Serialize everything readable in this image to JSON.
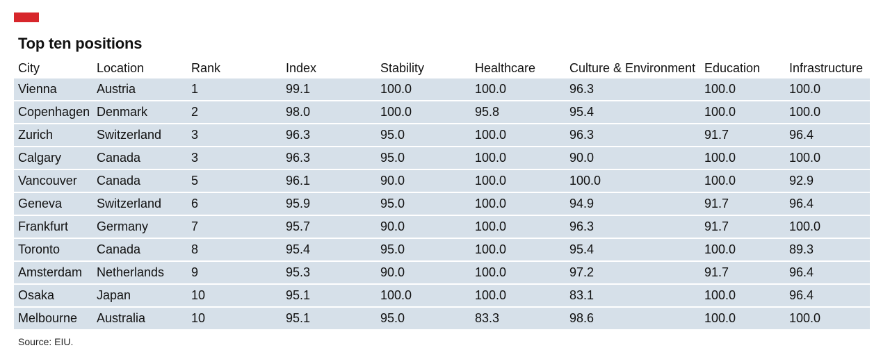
{
  "title": "Top ten positions",
  "source": "Source: EIU.",
  "colors": {
    "accent_tag": "#d7262b",
    "row_fill": "#d6e0e9"
  },
  "chart_data": {
    "type": "table",
    "title": "Top ten positions",
    "columns": [
      "City",
      "Location",
      "Rank",
      "Index",
      "Stability",
      "Healthcare",
      "Culture & Environment",
      "Education",
      "Infrastructure"
    ],
    "rows": [
      [
        "Vienna",
        "Austria",
        "1",
        "99.1",
        "100.0",
        "100.0",
        "96.3",
        "100.0",
        "100.0"
      ],
      [
        "Copenhagen",
        "Denmark",
        "2",
        "98.0",
        "100.0",
        "95.8",
        "95.4",
        "100.0",
        "100.0"
      ],
      [
        "Zurich",
        "Switzerland",
        "3",
        "96.3",
        "95.0",
        "100.0",
        "96.3",
        "91.7",
        "96.4"
      ],
      [
        "Calgary",
        "Canada",
        "3",
        "96.3",
        "95.0",
        "100.0",
        "90.0",
        "100.0",
        "100.0"
      ],
      [
        "Vancouver",
        "Canada",
        "5",
        "96.1",
        "90.0",
        "100.0",
        "100.0",
        "100.0",
        "92.9"
      ],
      [
        "Geneva",
        "Switzerland",
        "6",
        "95.9",
        "95.0",
        "100.0",
        "94.9",
        "91.7",
        "96.4"
      ],
      [
        "Frankfurt",
        "Germany",
        "7",
        "95.7",
        "90.0",
        "100.0",
        "96.3",
        "91.7",
        "100.0"
      ],
      [
        "Toronto",
        "Canada",
        "8",
        "95.4",
        "95.0",
        "100.0",
        "95.4",
        "100.0",
        "89.3"
      ],
      [
        "Amsterdam",
        "Netherlands",
        "9",
        "95.3",
        "90.0",
        "100.0",
        "97.2",
        "91.7",
        "96.4"
      ],
      [
        "Osaka",
        "Japan",
        "10",
        "95.1",
        "100.0",
        "100.0",
        "83.1",
        "100.0",
        "96.4"
      ],
      [
        "Melbourne",
        "Australia",
        "10",
        "95.1",
        "95.0",
        "83.3",
        "98.6",
        "100.0",
        "100.0"
      ]
    ]
  }
}
